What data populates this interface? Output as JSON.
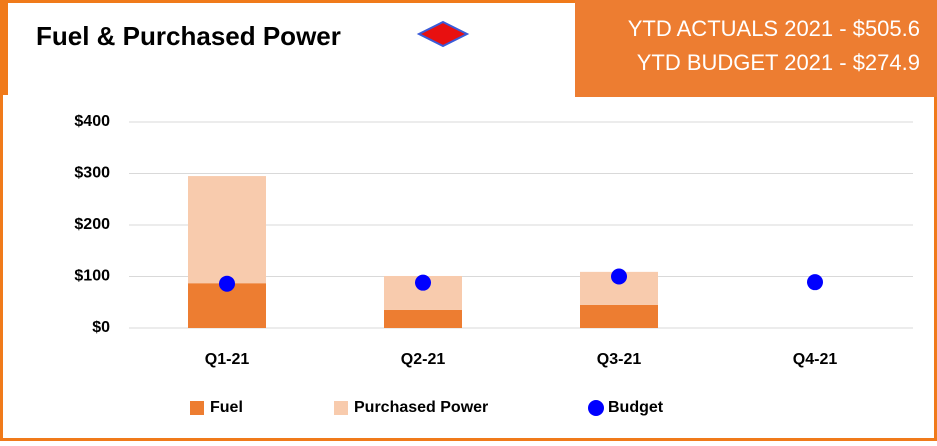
{
  "chart_data": {
    "type": "bar",
    "stacked": true,
    "title": "Fuel & Purchased Power",
    "annotations": [
      "YTD ACTUALS 2021 - $505.6",
      "YTD BUDGET 2021  - $274.9"
    ],
    "categories": [
      "Q1-21",
      "Q2-21",
      "Q3-21",
      "Q4-21"
    ],
    "series": [
      {
        "name": "Fuel",
        "color": "#ed7d31",
        "values": [
          87,
          35,
          45,
          null
        ]
      },
      {
        "name": "Purchased Power",
        "color": "#f8cbad",
        "values": [
          208,
          66,
          64,
          null
        ]
      },
      {
        "name": "Budget",
        "type": "scatter",
        "color": "#0000ff",
        "values": [
          86,
          88,
          100,
          89
        ]
      }
    ],
    "ylim": [
      0,
      400
    ],
    "yticks": [
      {
        "value": 0,
        "label": "$0"
      },
      {
        "value": 100,
        "label": "$100"
      },
      {
        "value": 200,
        "label": "$200"
      },
      {
        "value": 300,
        "label": "$300"
      },
      {
        "value": 400,
        "label": "$400"
      }
    ],
    "grid": true,
    "legend": "bottom"
  }
}
